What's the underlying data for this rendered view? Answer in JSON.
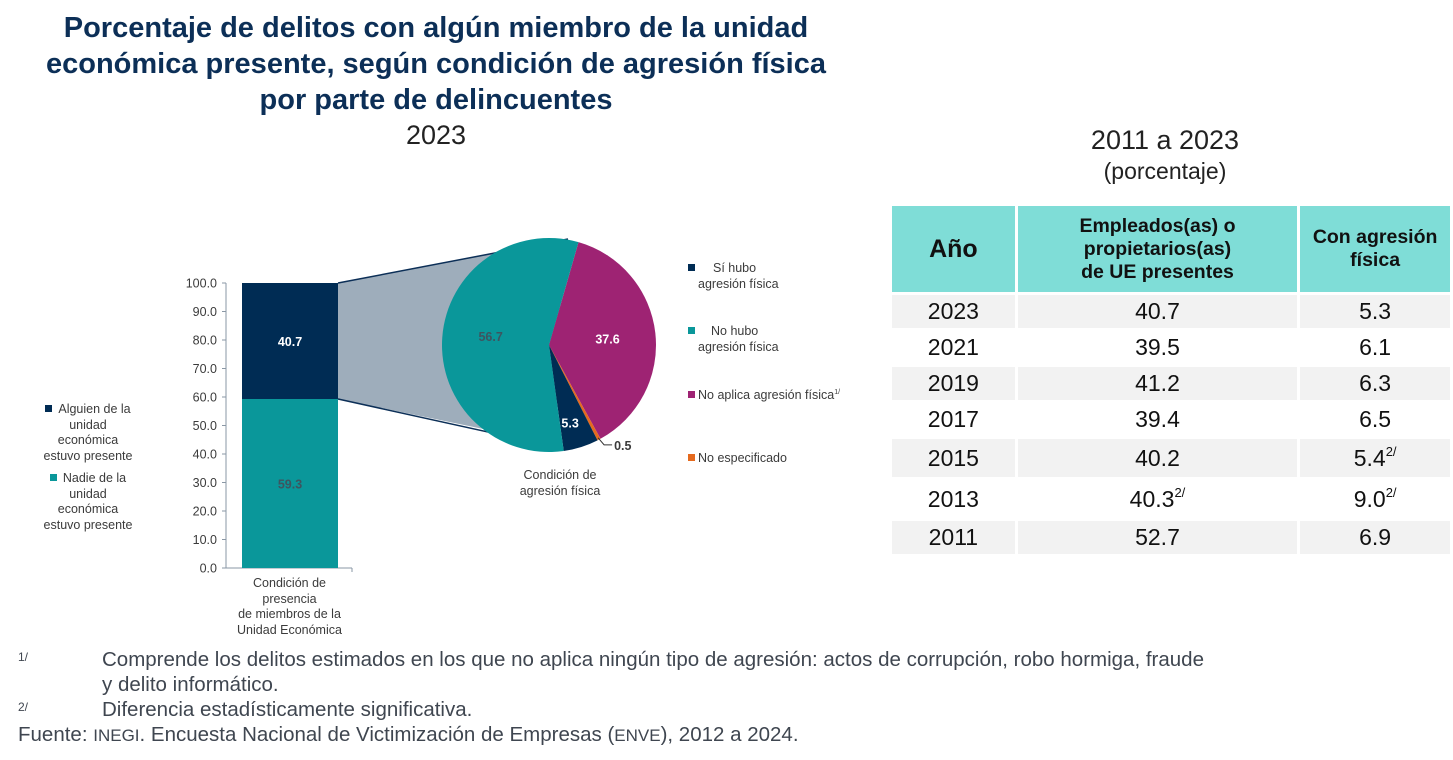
{
  "title": "Porcentaje de delitos con algún miembro de la unidad económica presente, según condición de agresión física por parte de delincuentes",
  "title_lines": [
    "Porcentaje de delitos con algún miembro de la unidad",
    "económica presente, según condición de agresión física",
    "por parte de delincuentes"
  ],
  "left_subtitle": "2023",
  "right_subtitle": "2011 a 2023",
  "right_unit": "(porcentaje)",
  "colors": {
    "navy": "#002c54",
    "teal": "#0a979a",
    "magenta": "#9e2373",
    "orange": "#e56a1e",
    "connector": "#9eadbb",
    "header_bg": "#7fddd7",
    "row_alt": "#f2f2f2"
  },
  "chart_data": [
    {
      "type": "bar",
      "stacked": true,
      "categories": [
        "Condición de presencia de miembros de la Unidad Económica"
      ],
      "category_label_lines": [
        "Condición de",
        "presencia",
        "de miembros de la",
        "Unidad Económica"
      ],
      "series": [
        {
          "name": "Nadie de la unidad económica estuvo presente",
          "values": [
            59.3
          ],
          "color": "teal",
          "label": "59.3"
        },
        {
          "name": "Alguien de la unidad económica estuvo presente",
          "values": [
            40.7
          ],
          "color": "navy",
          "label": "40.7"
        }
      ],
      "ylim": [
        0,
        100
      ],
      "yticks": [
        "0.0",
        "10.0",
        "20.0",
        "30.0",
        "40.0",
        "50.0",
        "60.0",
        "70.0",
        "80.0",
        "90.0",
        "100.0"
      ],
      "legend": [
        {
          "label_lines": [
            "Alguien de la",
            "unidad",
            "económica",
            "estuvo presente"
          ],
          "color": "navy"
        },
        {
          "label_lines": [
            "Nadie de la",
            "unidad",
            "económica",
            "estuvo presente"
          ],
          "color": "teal"
        }
      ],
      "legend_position": "left"
    },
    {
      "type": "pie",
      "title_lines": [
        "Condición de",
        "agresión física"
      ],
      "slices": [
        {
          "name": "No aplica agresión física",
          "value": 37.6,
          "label": "37.6",
          "color": "magenta"
        },
        {
          "name": "No especificado",
          "value": 0.5,
          "label": "0.5",
          "color": "orange"
        },
        {
          "name": "Sí hubo agresión física",
          "value": 5.3,
          "label": "5.3",
          "color": "navy"
        },
        {
          "name": "No hubo agresión física",
          "value": 56.7,
          "label": "56.7",
          "color": "teal"
        }
      ],
      "legend": [
        {
          "label_lines": [
            "Sí hubo",
            "agresión física"
          ],
          "color": "navy"
        },
        {
          "label_lines": [
            "No hubo",
            "agresión física"
          ],
          "color": "teal"
        },
        {
          "label_lines": [
            "No aplica agresión física"
          ],
          "sup": "1/",
          "color": "magenta"
        },
        {
          "label_lines": [
            "No especificado"
          ],
          "color": "orange"
        }
      ],
      "legend_position": "right"
    },
    {
      "type": "table",
      "columns": [
        "Año",
        "Empleados(as) o propietarios(as) de UE presentes",
        "Con agresión física"
      ],
      "column_lines": [
        [
          "Año"
        ],
        [
          "Empleados(as) o",
          "propietarios(as)",
          "de UE presentes"
        ],
        [
          "Con agresión",
          "física"
        ]
      ],
      "rows": [
        {
          "year": "2023",
          "present": "40.7",
          "present_sup": "",
          "aggression": "5.3",
          "aggression_sup": ""
        },
        {
          "year": "2021",
          "present": "39.5",
          "present_sup": "",
          "aggression": "6.1",
          "aggression_sup": ""
        },
        {
          "year": "2019",
          "present": "41.2",
          "present_sup": "",
          "aggression": "6.3",
          "aggression_sup": ""
        },
        {
          "year": "2017",
          "present": "39.4",
          "present_sup": "",
          "aggression": "6.5",
          "aggression_sup": ""
        },
        {
          "year": "2015",
          "present": "40.2",
          "present_sup": "",
          "aggression": "5.4",
          "aggression_sup": "2/"
        },
        {
          "year": "2013",
          "present": "40.3",
          "present_sup": "2/",
          "aggression": "9.0",
          "aggression_sup": "2/"
        },
        {
          "year": "2011",
          "present": "52.7",
          "present_sup": "",
          "aggression": "6.9",
          "aggression_sup": ""
        }
      ]
    }
  ],
  "notes": [
    {
      "mark": "1/",
      "lines": [
        "Comprende los delitos estimados en los que no aplica ningún tipo de agresión: actos de corrupción, robo hormiga, fraude",
        "y delito informático."
      ]
    },
    {
      "mark": "2/",
      "lines": [
        "Diferencia estadísticamente significativa."
      ]
    }
  ],
  "source": {
    "label": "Fuente:",
    "org": "INEGI",
    "text1": ". Encuesta Nacional de Victimización de Empresas (",
    "acronym": "ENVE",
    "text2": "), 2012 a 2024."
  }
}
